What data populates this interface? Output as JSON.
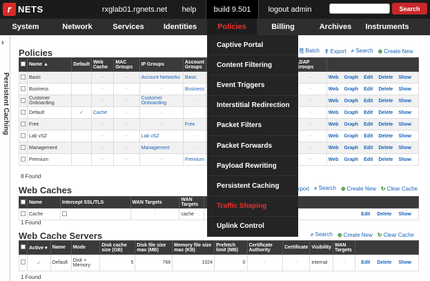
{
  "topbar": {
    "brand": "NETS",
    "host": "rxglab01.rgnets.net",
    "help": "help",
    "build": "build 9.501",
    "logout": "logout admin",
    "search_button": "Search"
  },
  "menu": [
    "System",
    "Network",
    "Services",
    "Identities",
    "Policies",
    "Billing",
    "Archives",
    "Instruments"
  ],
  "sidebar": {
    "label": "Persistent Caching",
    "arrow": "›"
  },
  "dropdown": [
    "Captive Portal",
    "Content Filtering",
    "Event Triggers",
    "Interstitial Redirection",
    "Packet Filters",
    "Packet Forwards",
    "Payload Rewriting",
    "Persistent Caching",
    "Traffic Shaping",
    "Uplink Control"
  ],
  "policies": {
    "title": "Policies",
    "tools": [
      "Batch",
      "Export",
      "Search",
      "Create New"
    ],
    "headers": [
      "Name",
      "Default",
      "Web Cache",
      "MAC Groups",
      "IP Groups",
      "Account Groups",
      "LDAP Groups"
    ],
    "rows": [
      {
        "name": "Basic",
        "default": "",
        "web_cache": "-",
        "mac": "-",
        "ip": "Account Networks",
        "acct": "Basic",
        "ldap": "-"
      },
      {
        "name": "Business",
        "default": "",
        "web_cache": "-",
        "mac": "-",
        "ip": "-",
        "acct": "Business",
        "ldap": "-"
      },
      {
        "name": "Customer Onboarding",
        "default": "",
        "web_cache": "-",
        "mac": "-",
        "ip": "Customer Onboarding",
        "acct": "-",
        "ldap": "-"
      },
      {
        "name": "Default",
        "default": "✓",
        "web_cache": "Cache",
        "mac": "-",
        "ip": "-",
        "acct": "-",
        "ldap": "-"
      },
      {
        "name": "Free",
        "default": "",
        "web_cache": "-",
        "mac": "-",
        "ip": "-",
        "acct": "Free",
        "ldap": "-"
      },
      {
        "name": "Lab vSZ",
        "default": "",
        "web_cache": "-",
        "mac": "-",
        "ip": "Lab vSZ",
        "acct": "-",
        "ldap": "-"
      },
      {
        "name": "Management",
        "default": "",
        "web_cache": "-",
        "mac": "-",
        "ip": "Management",
        "acct": "-",
        "ldap": "-"
      },
      {
        "name": "Premium",
        "default": "",
        "web_cache": "-",
        "mac": "-",
        "ip": "-",
        "acct": "Premium",
        "ldap": "-"
      }
    ],
    "actions": [
      "Web",
      "Graph",
      "Edit",
      "Delete",
      "Show"
    ],
    "found": "8 Found"
  },
  "web_caches": {
    "title": "Web Caches",
    "tools": [
      "Export",
      "Search",
      "Create New",
      "Clear Cache"
    ],
    "headers": [
      "Name",
      "Intercept SSL/TLS",
      "WAN Targets",
      "WAN Targets"
    ],
    "rows": [
      {
        "name": "Cache",
        "ssl": "",
        "wan1": "-",
        "wan2": "cache"
      }
    ],
    "actions": [
      "Edit",
      "Delete",
      "Show"
    ],
    "found": "1 Found"
  },
  "web_cache_servers": {
    "title": "Web Cache Servers",
    "tools": [
      "Search",
      "Create New",
      "Clear Cache"
    ],
    "headers": [
      "Active",
      "Name",
      "Mode",
      "Disk cache size (GB)",
      "Disk file size max (MB)",
      "Memory file size max (KB)",
      "Prefetch limit (MB)",
      "Certificate Authority",
      "Certificate",
      "Visibility",
      "WAN Targets"
    ],
    "rows": [
      {
        "active": "✓",
        "name": "Default",
        "mode": "Disk + Memory",
        "disk": "5",
        "diskmax": "768",
        "memmax": "1024",
        "prefetch": "0",
        "ca": "-",
        "cert": "-",
        "vis": "internal",
        "wan": "-"
      }
    ],
    "actions": [
      "Edit",
      "Delete",
      "Show"
    ],
    "found": "1 Found"
  }
}
